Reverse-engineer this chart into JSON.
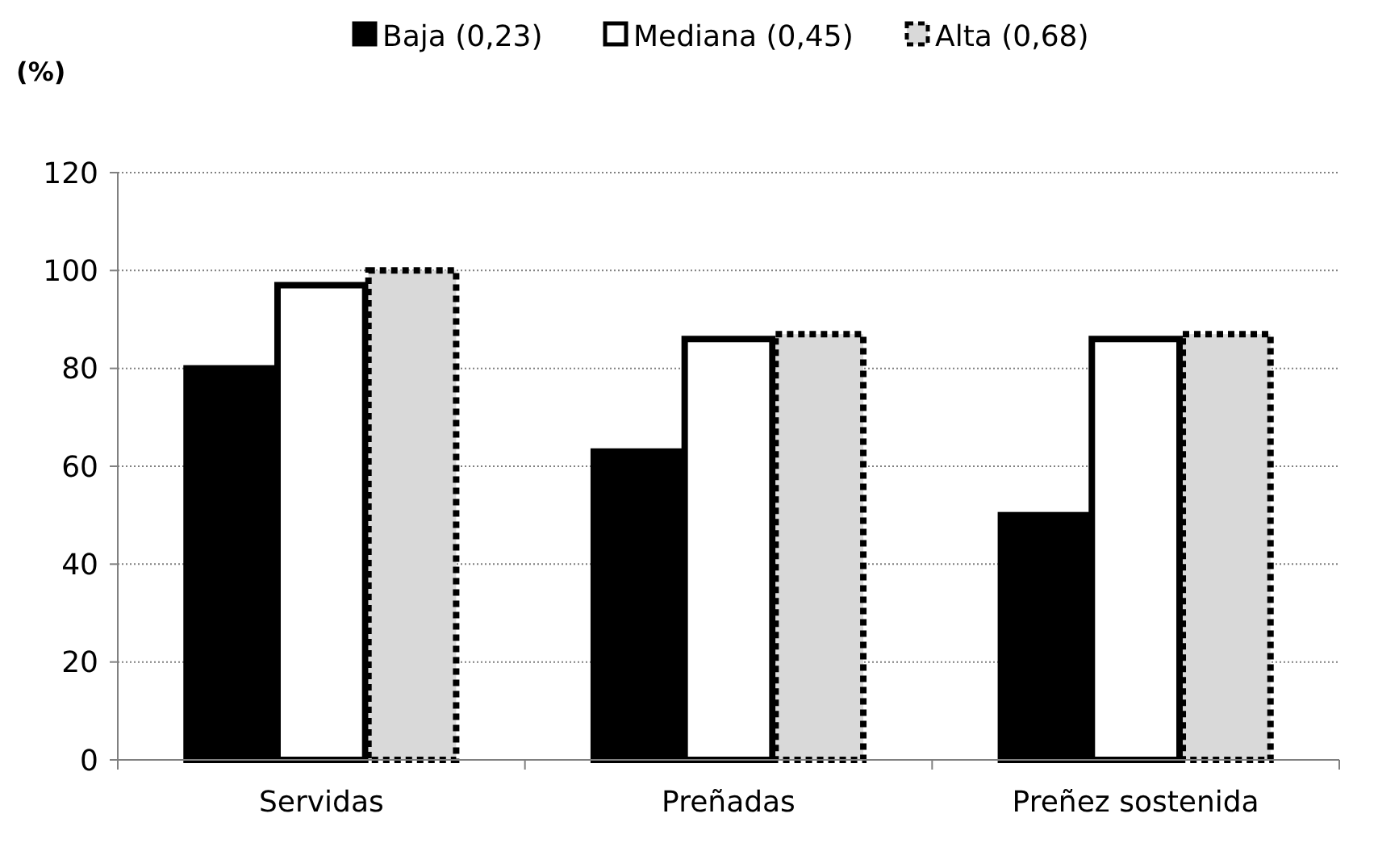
{
  "chart_data": {
    "type": "bar",
    "ylabel": "(%)",
    "categories": [
      "Servidas",
      "Preñadas",
      "Preñez sostenida"
    ],
    "series": [
      {
        "name": "Baja (0,23)",
        "color": "#000000",
        "line_style": "solid",
        "values": [
          80,
          63,
          50
        ]
      },
      {
        "name": "Mediana (0,45)",
        "color": "#ffffff",
        "line_style": "solid",
        "values": [
          97,
          86,
          86
        ]
      },
      {
        "name": "Alta (0,68)",
        "color": "#d9d9d9",
        "line_style": "dotted",
        "values": [
          100,
          87,
          87
        ]
      }
    ],
    "ylim": [
      0,
      120
    ],
    "yticks": [
      0,
      20,
      40,
      60,
      80,
      100,
      120
    ],
    "grid": "y",
    "legend": "top"
  }
}
